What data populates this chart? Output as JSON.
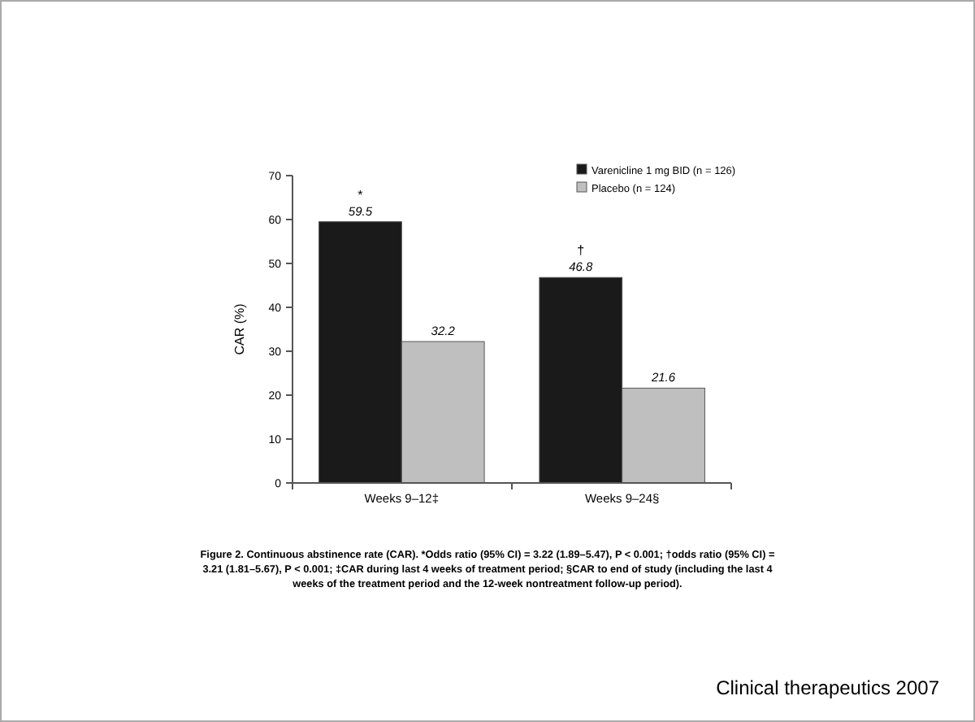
{
  "chart_data": {
    "type": "bar",
    "ylabel": "CAR (%)",
    "categories": [
      "Weeks 9–12‡",
      "Weeks 9–24§"
    ],
    "series": [
      {
        "name": "Varenicline 1 mg BID (n = 126)",
        "color": "#1a1a1a",
        "values": [
          59.5,
          46.8
        ],
        "value_labels": [
          "59.5",
          "46.8"
        ]
      },
      {
        "name": "Placebo (n = 124)",
        "color": "#bfbfbf",
        "values": [
          32.2,
          21.6
        ],
        "value_labels": [
          "32.2",
          "21.6"
        ]
      }
    ],
    "ylim": [
      0,
      70
    ],
    "yticks": [
      0,
      10,
      20,
      30,
      40,
      50,
      60,
      70
    ],
    "legend": "top right",
    "grid": false,
    "annotations": [
      "*",
      "†",
      "Figure 2. Continuous abstinence rate (CAR). *Odds ratio (95% CI) = 3.22 (1.89–5.47), P < 0.001; †odds ratio (95% CI) = 3.21 (1.81–5.67), P < 0.001; ‡CAR during last 4 weeks of treatment period; §CAR to end of study (including the last 4 weeks of the treatment period and the 12-week nontreatment follow-up period).",
      "Clinical therapeutics 2007"
    ]
  }
}
